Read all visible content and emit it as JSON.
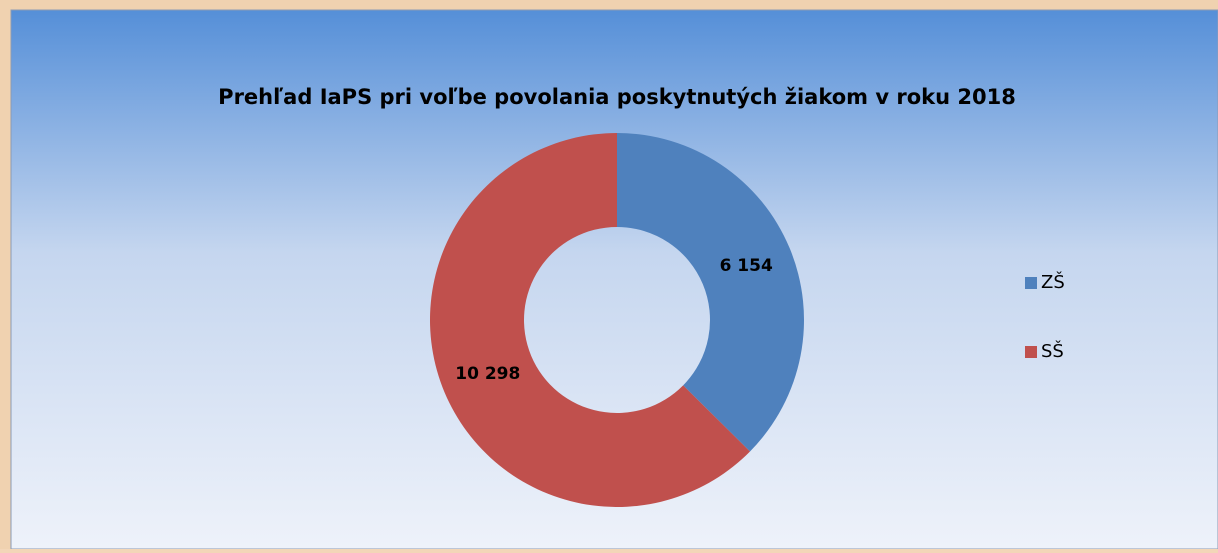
{
  "chart_data": {
    "type": "donut",
    "title": "Prehľad IaPS pri voľbe povolania poskytnutých žiakom v roku 2018",
    "categories": [
      "ZŠ",
      "SŠ"
    ],
    "values": [
      6154,
      10298
    ],
    "value_labels": [
      "6 154",
      "10 298"
    ],
    "colors": [
      "#4f81bd",
      "#c0504d"
    ],
    "legend": "right"
  }
}
